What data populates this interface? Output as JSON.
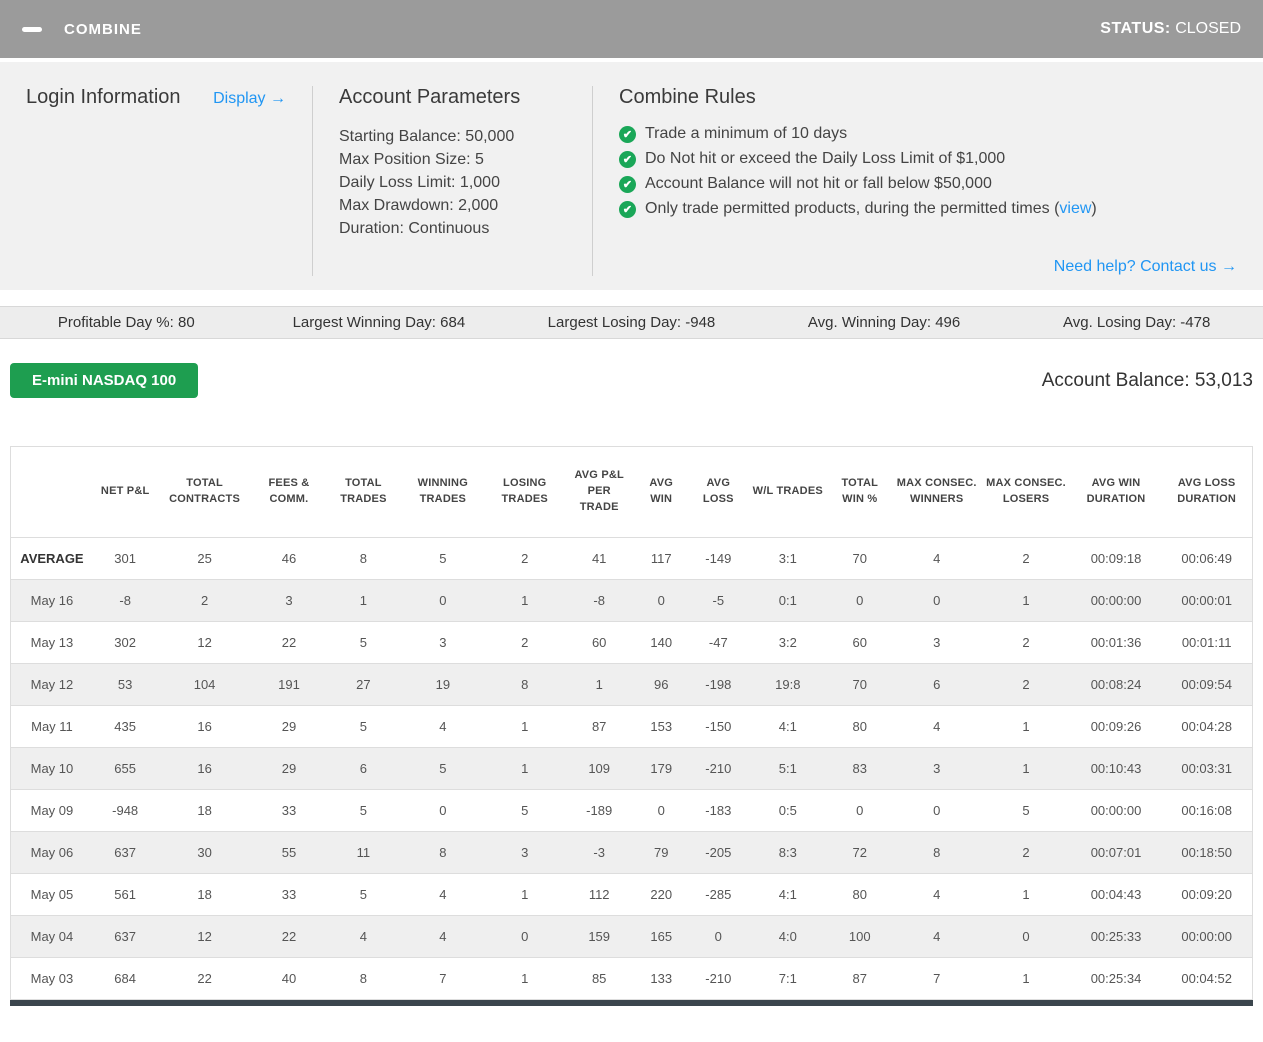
{
  "header": {
    "title": "COMBINE",
    "status_label": "STATUS:",
    "status_value": "CLOSED"
  },
  "info_panel": {
    "login": {
      "title": "Login Information",
      "display_link": "Display →"
    },
    "account_parameters": {
      "title": "Account Parameters",
      "items": [
        "Starting Balance: 50,000",
        "Max Position Size: 5",
        "Daily Loss Limit: 1,000",
        "Max Drawdown: 2,000",
        "Duration: Continuous"
      ]
    },
    "combine_rules": {
      "title": "Combine Rules",
      "rules": [
        {
          "text": "Trade a minimum of 10 days"
        },
        {
          "text": "Do Not hit or exceed the Daily Loss Limit of $1,000"
        },
        {
          "text": "Account Balance will not hit or fall below $50,000"
        },
        {
          "text": "Only trade permitted products, during the permitted times (",
          "link_text": "view",
          "suffix": ")"
        }
      ]
    },
    "help_link": "Need help? Contact us →"
  },
  "stats_bar": [
    "Profitable Day %: 80",
    "Largest Winning Day: 684",
    "Largest Losing Day: -948",
    "Avg. Winning Day: 496",
    "Avg. Losing Day: -478"
  ],
  "account": {
    "product_button": "E-mini NASDAQ 100",
    "balance": "Account Balance: 53,013"
  },
  "table": {
    "headers": [
      "",
      "NET P&L",
      "TOTAL CONTRACTS",
      "FEES & COMM.",
      "TOTAL TRADES",
      "WINNING TRADES",
      "LOSING TRADES",
      "AVG P&L PER TRADE",
      "AVG WIN",
      "AVG LOSS",
      "W/L TRADES",
      "TOTAL WIN %",
      "MAX CONSEC. WINNERS",
      "MAX CONSEC. LOSERS",
      "AVG WIN DURATION",
      "AVG LOSS DURATION"
    ],
    "col_widths": [
      "6.6%",
      "5.2%",
      "7.6%",
      "6.0%",
      "6.0%",
      "6.8%",
      "6.4%",
      "5.6%",
      "4.4%",
      "4.8%",
      "6.4%",
      "5.2%",
      "7.2%",
      "7.2%",
      "7.3%",
      "7.3%"
    ],
    "rows": [
      {
        "label": "AVERAGE",
        "values": [
          "301",
          "25",
          "46",
          "8",
          "5",
          "2",
          "41",
          "117",
          "-149",
          "3:1",
          "70",
          "4",
          "2",
          "00:09:18",
          "00:06:49"
        ]
      },
      {
        "label": "May 16",
        "values": [
          "-8",
          "2",
          "3",
          "1",
          "0",
          "1",
          "-8",
          "0",
          "-5",
          "0:1",
          "0",
          "0",
          "1",
          "00:00:00",
          "00:00:01"
        ]
      },
      {
        "label": "May 13",
        "values": [
          "302",
          "12",
          "22",
          "5",
          "3",
          "2",
          "60",
          "140",
          "-47",
          "3:2",
          "60",
          "3",
          "2",
          "00:01:36",
          "00:01:11"
        ]
      },
      {
        "label": "May 12",
        "values": [
          "53",
          "104",
          "191",
          "27",
          "19",
          "8",
          "1",
          "96",
          "-198",
          "19:8",
          "70",
          "6",
          "2",
          "00:08:24",
          "00:09:54"
        ]
      },
      {
        "label": "May 11",
        "values": [
          "435",
          "16",
          "29",
          "5",
          "4",
          "1",
          "87",
          "153",
          "-150",
          "4:1",
          "80",
          "4",
          "1",
          "00:09:26",
          "00:04:28"
        ]
      },
      {
        "label": "May 10",
        "values": [
          "655",
          "16",
          "29",
          "6",
          "5",
          "1",
          "109",
          "179",
          "-210",
          "5:1",
          "83",
          "3",
          "1",
          "00:10:43",
          "00:03:31"
        ]
      },
      {
        "label": "May 09",
        "values": [
          "-948",
          "18",
          "33",
          "5",
          "0",
          "5",
          "-189",
          "0",
          "-183",
          "0:5",
          "0",
          "0",
          "5",
          "00:00:00",
          "00:16:08"
        ]
      },
      {
        "label": "May 06",
        "values": [
          "637",
          "30",
          "55",
          "11",
          "8",
          "3",
          "-3",
          "79",
          "-205",
          "8:3",
          "72",
          "8",
          "2",
          "00:07:01",
          "00:18:50"
        ]
      },
      {
        "label": "May 05",
        "values": [
          "561",
          "18",
          "33",
          "5",
          "4",
          "1",
          "112",
          "220",
          "-285",
          "4:1",
          "80",
          "4",
          "1",
          "00:04:43",
          "00:09:20"
        ]
      },
      {
        "label": "May 04",
        "values": [
          "637",
          "12",
          "22",
          "4",
          "4",
          "0",
          "159",
          "165",
          "0",
          "4:0",
          "100",
          "4",
          "0",
          "00:25:33",
          "00:00:00"
        ]
      },
      {
        "label": "May 03",
        "values": [
          "684",
          "22",
          "40",
          "8",
          "7",
          "1",
          "85",
          "133",
          "-210",
          "7:1",
          "87",
          "7",
          "1",
          "00:25:34",
          "00:04:52"
        ]
      }
    ]
  },
  "icons": {
    "minimize": "minus-icon",
    "rule_check": "check-circle-icon"
  },
  "colors": {
    "topbar_bg": "#9b9b9b",
    "panel_bg": "#f1f1f1",
    "link_blue": "#2196f3",
    "check_green": "#1aa758",
    "button_green": "#1e9e50",
    "stats_bg": "#ededed",
    "row_stripe": "#efefef",
    "footer_strip": "#3b454d"
  }
}
